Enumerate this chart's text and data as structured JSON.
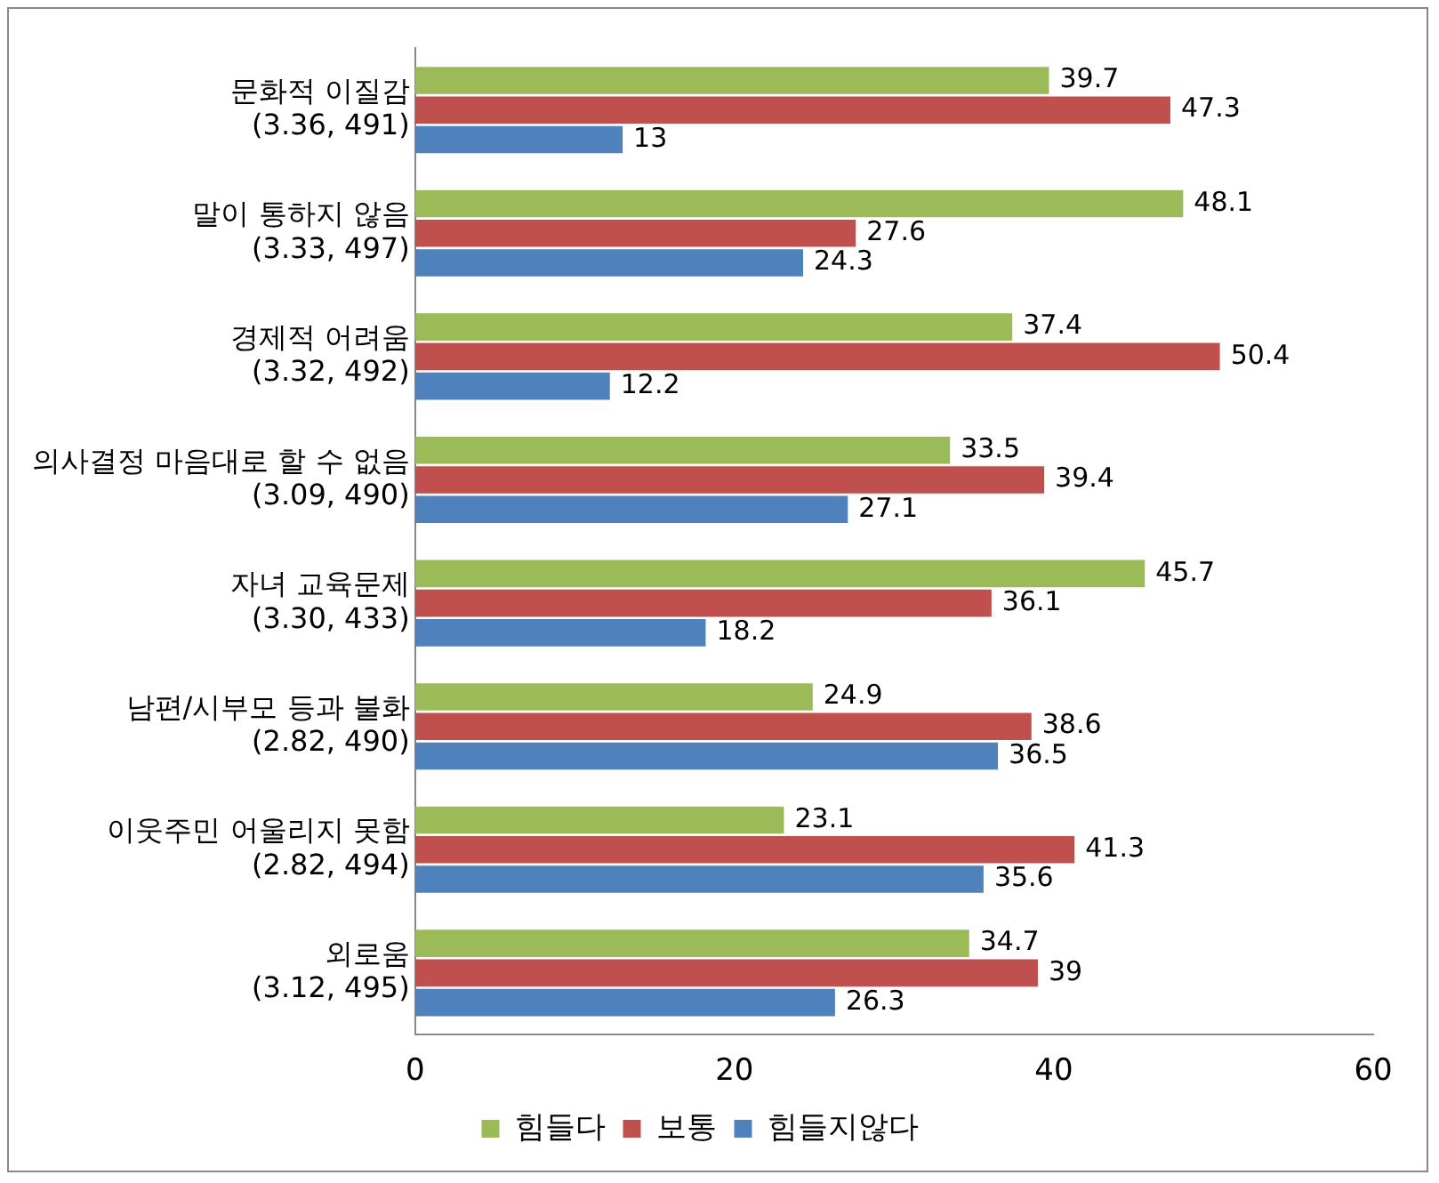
{
  "chart_data": {
    "type": "bar",
    "orientation": "horizontal",
    "categories": [
      "문화적 이질감\n(3.36, 491)",
      "말이 통하지 않음\n(3.33, 497)",
      "경제적 어려움\n(3.32, 492)",
      "의사결정 마음대로 할 수 없음\n(3.09, 490)",
      "자녀 교육문제\n(3.30, 433)",
      "남편/시부모 등과 불화\n(2.82, 490)",
      "이웃주민 어울리지 못함\n(2.82, 494)",
      "외로움\n(3.12, 495)"
    ],
    "series": [
      {
        "name": "힘들다",
        "color": "#9bbb59",
        "values": [
          39.7,
          48.1,
          37.4,
          33.5,
          45.7,
          24.9,
          23.1,
          34.7
        ]
      },
      {
        "name": "보통",
        "color": "#c0504d",
        "values": [
          47.3,
          27.6,
          50.4,
          39.4,
          36.1,
          38.6,
          41.3,
          39
        ]
      },
      {
        "name": "힘들지않다",
        "color": "#4f81bd",
        "values": [
          13,
          24.3,
          12.2,
          27.1,
          18.2,
          36.5,
          35.6,
          26.3
        ]
      }
    ],
    "xlim": [
      0,
      60
    ],
    "xticks": [
      0,
      20,
      40,
      60
    ],
    "grid": false,
    "legend": "bottom",
    "data_labels": true
  }
}
